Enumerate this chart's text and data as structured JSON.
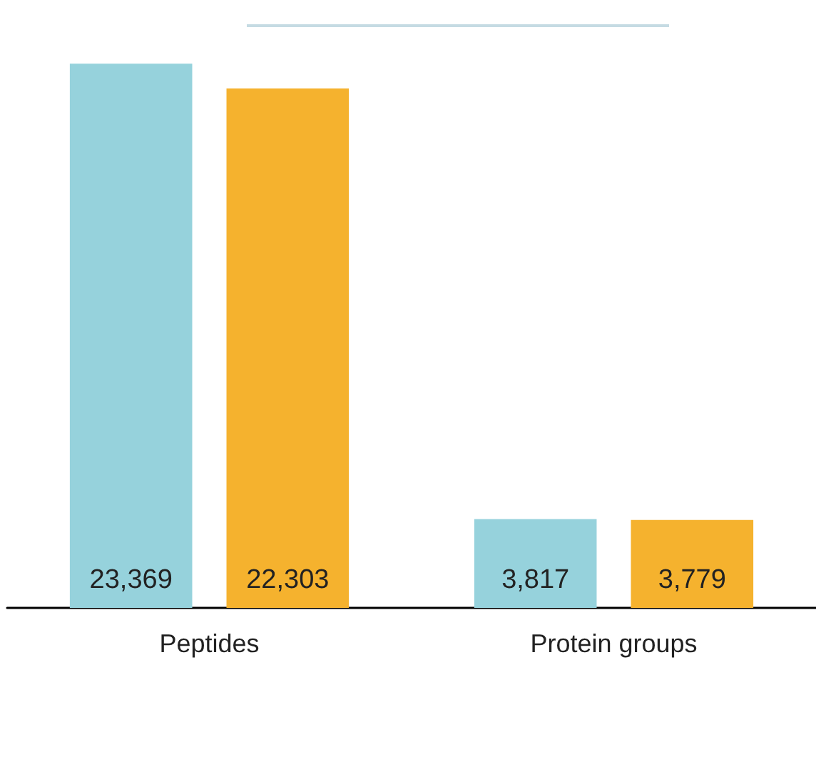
{
  "chart_data": {
    "type": "bar",
    "categories": [
      "Peptides",
      "Protein groups"
    ],
    "series": [
      {
        "color": "#96d2dc",
        "values": [
          23369,
          3817
        ],
        "value_labels": [
          "23,369",
          "3,817"
        ]
      },
      {
        "color": "#f5b22e",
        "values": [
          22303,
          3779
        ],
        "value_labels": [
          "22,303",
          "3,779"
        ]
      }
    ]
  }
}
